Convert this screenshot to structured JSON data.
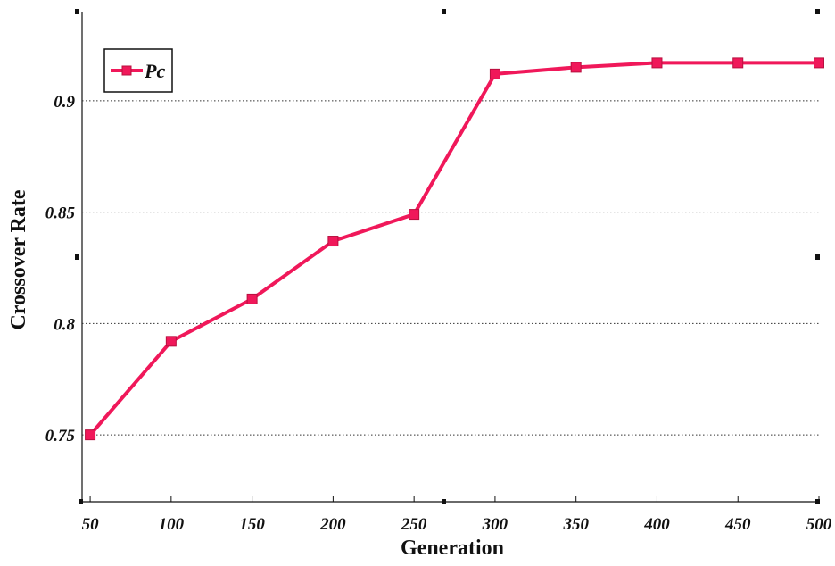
{
  "chart_data": {
    "type": "line",
    "xlabel": "Generation",
    "ylabel": "Crossover Rate",
    "x": [
      50,
      100,
      150,
      200,
      250,
      300,
      350,
      400,
      450,
      500
    ],
    "series": [
      {
        "name": "Pc",
        "color": "#f0185a",
        "marker": "square",
        "values": [
          0.75,
          0.792,
          0.811,
          0.837,
          0.849,
          0.912,
          0.915,
          0.917,
          0.917,
          0.917
        ]
      }
    ],
    "xticks": [
      "50",
      "100",
      "150",
      "200",
      "250",
      "300",
      "350",
      "400",
      "450",
      "500"
    ],
    "yticks": [
      "0.75",
      "0.8",
      "0.85",
      "0.9"
    ],
    "ytick_values": [
      0.75,
      0.8,
      0.85,
      0.9
    ],
    "xlim": [
      45,
      500
    ],
    "ylim": [
      0.72,
      0.94
    ],
    "grid": "horizontal-dotted",
    "legend_position": "top-left"
  }
}
